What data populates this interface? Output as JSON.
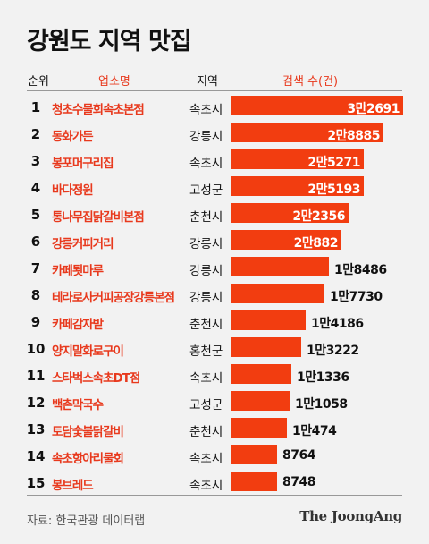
{
  "title": "강원도 지역 맛집",
  "headers": {
    "rank": "순위",
    "name": "업소명",
    "region": "지역",
    "value": "검색 수(건)"
  },
  "source": "자료: 한국관광 데이터랩",
  "logo": "The JoongAng",
  "colors": {
    "bar": "#f23d10",
    "accent": "#e8391d",
    "background": "#f2f2f2"
  },
  "chart_data": {
    "type": "bar",
    "orientation": "horizontal",
    "ylabel": "검색 수(건)",
    "rows": [
      {
        "rank": "1",
        "name": "청초수물회속초본점",
        "region": "속초시",
        "value": 32691,
        "label": "3만2691"
      },
      {
        "rank": "2",
        "name": "동화가든",
        "region": "강릉시",
        "value": 28885,
        "label": "2만8885"
      },
      {
        "rank": "3",
        "name": "봉포머구리집",
        "region": "속초시",
        "value": 25271,
        "label": "2만5271"
      },
      {
        "rank": "4",
        "name": "바다정원",
        "region": "고성군",
        "value": 25193,
        "label": "2만5193"
      },
      {
        "rank": "5",
        "name": "통나무집닭갈비본점",
        "region": "춘천시",
        "value": 22356,
        "label": "2만2356"
      },
      {
        "rank": "6",
        "name": "강릉커피거리",
        "region": "강릉시",
        "value": 20882,
        "label": "2만882"
      },
      {
        "rank": "7",
        "name": "카페툇마루",
        "region": "강릉시",
        "value": 18486,
        "label": "1만8486"
      },
      {
        "rank": "8",
        "name": "테라로사커피공장강릉본점",
        "region": "강릉시",
        "value": 17730,
        "label": "1만7730"
      },
      {
        "rank": "9",
        "name": "카페감자밭",
        "region": "춘천시",
        "value": 14186,
        "label": "1만4186"
      },
      {
        "rank": "10",
        "name": "양지말화로구이",
        "region": "홍천군",
        "value": 13222,
        "label": "1만3222"
      },
      {
        "rank": "11",
        "name": "스타벅스속초DT점",
        "region": "속초시",
        "value": 11336,
        "label": "1만1336"
      },
      {
        "rank": "12",
        "name": "백촌막국수",
        "region": "고성군",
        "value": 11058,
        "label": "1만1058"
      },
      {
        "rank": "13",
        "name": "토담숯불닭갈비",
        "region": "춘천시",
        "value": 10474,
        "label": "1만474"
      },
      {
        "rank": "14",
        "name": "속초항아리물회",
        "region": "속초시",
        "value": 8764,
        "label": "8764"
      },
      {
        "rank": "15",
        "name": "봉브레드",
        "region": "속초시",
        "value": 8748,
        "label": "8748"
      }
    ]
  }
}
